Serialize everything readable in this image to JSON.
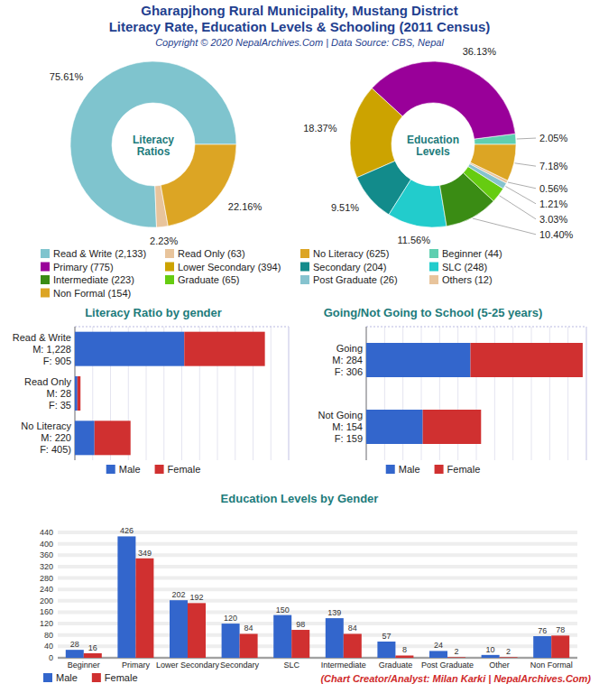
{
  "title": "Gharapjhong Rural Municipality, Mustang District",
  "subtitle": "Literacy Rate, Education Levels & Schooling (2011 Census)",
  "copyright": "Copyright © 2020 NepalArchives.Com | Data Source: CBS, Nepal",
  "credit": "(Chart Creator/Analyst: Milan Karki | NepalArchives.Com)",
  "chart_data": [
    {
      "type": "donut",
      "title": "Literacy Ratios",
      "categories": [
        "Read & Write (2,133)",
        "Read Only (63)",
        "No Literacy (625)"
      ],
      "values": [
        75.61,
        2.23,
        22.16
      ],
      "value_labels": [
        "75.61%",
        "2.23%",
        "22.16%"
      ],
      "colors": [
        "#7fc4ce",
        "#e8c49c",
        "#dca524"
      ],
      "data_labels": true,
      "legend": "bottom"
    },
    {
      "type": "donut",
      "title": "Education Levels",
      "categories": [
        "Beginner (44)",
        "Primary (775)",
        "Lower Secondary (394)",
        "Secondary (204)",
        "SLC (248)",
        "Intermediate (223)",
        "Graduate (65)",
        "Post Graduate (26)",
        "Others (12)",
        "Non Formal (154)"
      ],
      "values": [
        2.05,
        36.13,
        18.37,
        9.51,
        11.56,
        10.4,
        3.03,
        1.21,
        0.56,
        7.18
      ],
      "value_labels": [
        "2.05%",
        "36.13%",
        "18.37%",
        "9.51%",
        "11.56%",
        "10.40%",
        "3.03%",
        "1.21%",
        "0.56%",
        "7.18%"
      ],
      "colors": [
        "#5fcfb0",
        "#990099",
        "#cca300",
        "#128b8b",
        "#22cccc",
        "#3a8c14",
        "#66cc11",
        "#86c3cf",
        "#e8c49c",
        "#dca524"
      ],
      "data_labels": true,
      "legend": "bottom"
    },
    {
      "type": "bar",
      "title": "Literacy Ratio by gender",
      "orientation": "horizontal",
      "stacked": true,
      "categories": [
        "Read & Write\nM: 1,228\nF: 905",
        "Read Only\nM: 28\nF: 35",
        "No Literacy\nM: 220\nF: 405)"
      ],
      "series": [
        {
          "name": "Male",
          "color": "#3366cc",
          "values": [
            1228,
            28,
            220
          ]
        },
        {
          "name": "Female",
          "color": "#d03030",
          "values": [
            905,
            35,
            405
          ]
        }
      ],
      "xlim": [
        0,
        2400
      ],
      "xticks": [
        0,
        200,
        400,
        600,
        800,
        1000,
        1200,
        1400,
        1600,
        1800,
        2000,
        2200,
        2400
      ],
      "grid": true,
      "tick_labels": false,
      "legend": "bottom"
    },
    {
      "type": "bar",
      "title": "Going/Not Going to School (5-25 years)",
      "orientation": "horizontal",
      "stacked": true,
      "categories": [
        "Going\nM: 284\nF: 306",
        "Not Going\nM: 154\nF: 159"
      ],
      "series": [
        {
          "name": "Male",
          "color": "#3366cc",
          "values": [
            284,
            154
          ]
        },
        {
          "name": "Female",
          "color": "#d03030",
          "values": [
            306,
            159
          ]
        }
      ],
      "xlim": [
        0,
        600
      ],
      "xticks": [
        0,
        50,
        100,
        150,
        200,
        250,
        300,
        350,
        400,
        450,
        500,
        550,
        600
      ],
      "grid": true,
      "tick_labels": false,
      "legend": "bottom"
    },
    {
      "type": "bar",
      "title": "Education Levels by Gender",
      "categories": [
        "Beginner",
        "Primary",
        "Lower Secondary",
        "Secondary",
        "SLC",
        "Intermediate",
        "Graduate",
        "Post Graduate",
        "Other",
        "Non Formal"
      ],
      "series": [
        {
          "name": "Male",
          "color": "#3366cc",
          "values": [
            28,
            426,
            202,
            120,
            150,
            139,
            57,
            24,
            10,
            76
          ]
        },
        {
          "name": "Female",
          "color": "#d03030",
          "values": [
            16,
            349,
            192,
            84,
            98,
            84,
            8,
            2,
            2,
            78
          ]
        }
      ],
      "ylim": [
        0,
        440
      ],
      "yticks": [
        0,
        40,
        80,
        120,
        160,
        200,
        240,
        280,
        320,
        360,
        400,
        440
      ],
      "grid": true,
      "data_labels": true,
      "legend": "bottom-left"
    }
  ]
}
